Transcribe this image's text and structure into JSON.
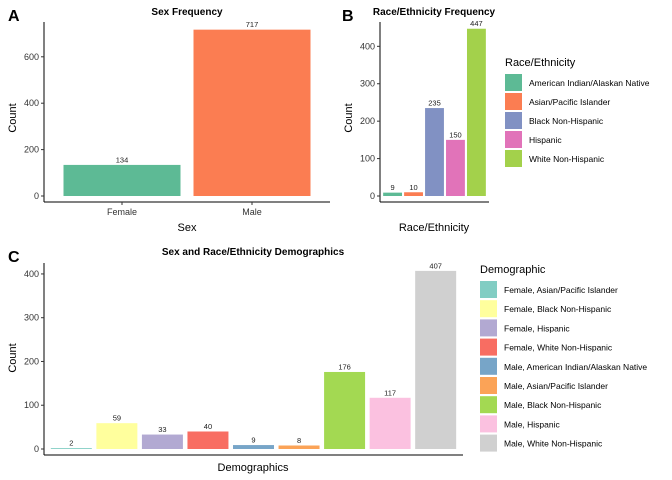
{
  "chart_data": [
    {
      "panel": "A",
      "type": "bar",
      "title": "Sex Frequency",
      "xlabel": "Sex",
      "ylabel": "Count",
      "categories": [
        "Female",
        "Male"
      ],
      "values": [
        134,
        717
      ],
      "colors": [
        "#5dba95",
        "#fb7d52"
      ],
      "ylim": [
        0,
        750
      ],
      "yticks": [
        0,
        200,
        400,
        600
      ],
      "legend": null
    },
    {
      "panel": "B",
      "type": "bar",
      "title": "Race/Ethnicity Frequency",
      "xlabel": "Race/Ethnicity",
      "ylabel": "Count",
      "categories": [
        "American Indian/Alaskan Native",
        "Asian/Pacific Islander",
        "Black Non-Hispanic",
        "Hispanic",
        "White Non-Hispanic"
      ],
      "values": [
        9,
        10,
        235,
        150,
        447
      ],
      "colors": [
        "#5dba95",
        "#fb7d52",
        "#8191c3",
        "#e173b9",
        "#a3d14b"
      ],
      "ylim": [
        0,
        465
      ],
      "yticks": [
        0,
        100,
        200,
        300,
        400
      ],
      "legend": {
        "title": "Race/Ethnicity",
        "placement": "right"
      }
    },
    {
      "panel": "C",
      "type": "bar",
      "title": "Sex and Race/Ethnicity Demographics",
      "xlabel": "Demographics",
      "ylabel": "Count",
      "categories": [
        "Female, Asian/Pacific Islander",
        "Female, Black Non-Hispanic",
        "Female, Hispanic",
        "Female, White Non-Hispanic",
        "Male, American Indian/Alaskan Native",
        "Male, Asian/Pacific Islander",
        "Male, Black Non-Hispanic",
        "Male, Hispanic",
        "Male, White Non-Hispanic"
      ],
      "values": [
        2,
        59,
        33,
        40,
        9,
        8,
        176,
        117,
        407
      ],
      "colors": [
        "#81cdc3",
        "#ffff9d",
        "#b2a9d2",
        "#f86d62",
        "#77a5c8",
        "#fba357",
        "#a3d952",
        "#fbc1e0",
        "#d0d0d0"
      ],
      "ylim": [
        0,
        425
      ],
      "yticks": [
        0,
        100,
        200,
        300,
        400
      ],
      "legend": {
        "title": "Demographic",
        "placement": "right"
      }
    }
  ]
}
